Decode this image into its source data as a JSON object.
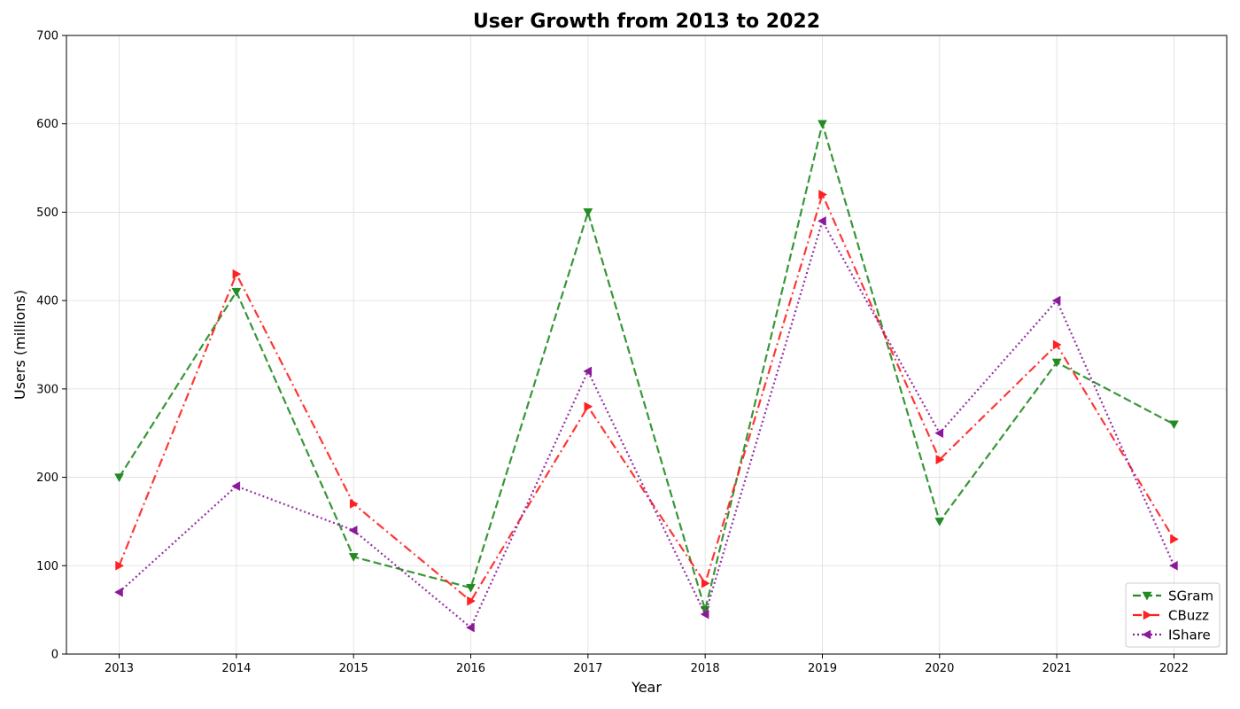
{
  "chart_data": {
    "type": "line",
    "title": "User Growth from 2013 to 2022",
    "xlabel": "Year",
    "ylabel": "Users (millions)",
    "x": [
      "2013",
      "2014",
      "2015",
      "2016",
      "2017",
      "2018",
      "2019",
      "2020",
      "2021",
      "2022"
    ],
    "xlim": [
      2012.55,
      2022.45
    ],
    "ylim": [
      0,
      700
    ],
    "yticks": [
      "0",
      "100",
      "200",
      "300",
      "400",
      "500",
      "600",
      "700"
    ],
    "grid": true,
    "legend_position": "bottom-right",
    "series": [
      {
        "name": "SGram",
        "color": "#228B22",
        "line_style": "dashed",
        "marker": "triangle-down",
        "values": [
          200,
          410,
          110,
          75,
          500,
          50,
          600,
          150,
          330,
          260
        ]
      },
      {
        "name": "CBuzz",
        "color": "#FF2020",
        "line_style": "dash-dot",
        "marker": "triangle-right",
        "values": [
          100,
          430,
          170,
          60,
          280,
          80,
          520,
          220,
          350,
          130
        ]
      },
      {
        "name": "IShare",
        "color": "#8B1A9B",
        "line_style": "dotted",
        "marker": "triangle-left",
        "values": [
          70,
          190,
          140,
          30,
          320,
          45,
          490,
          250,
          400,
          100
        ]
      }
    ]
  }
}
